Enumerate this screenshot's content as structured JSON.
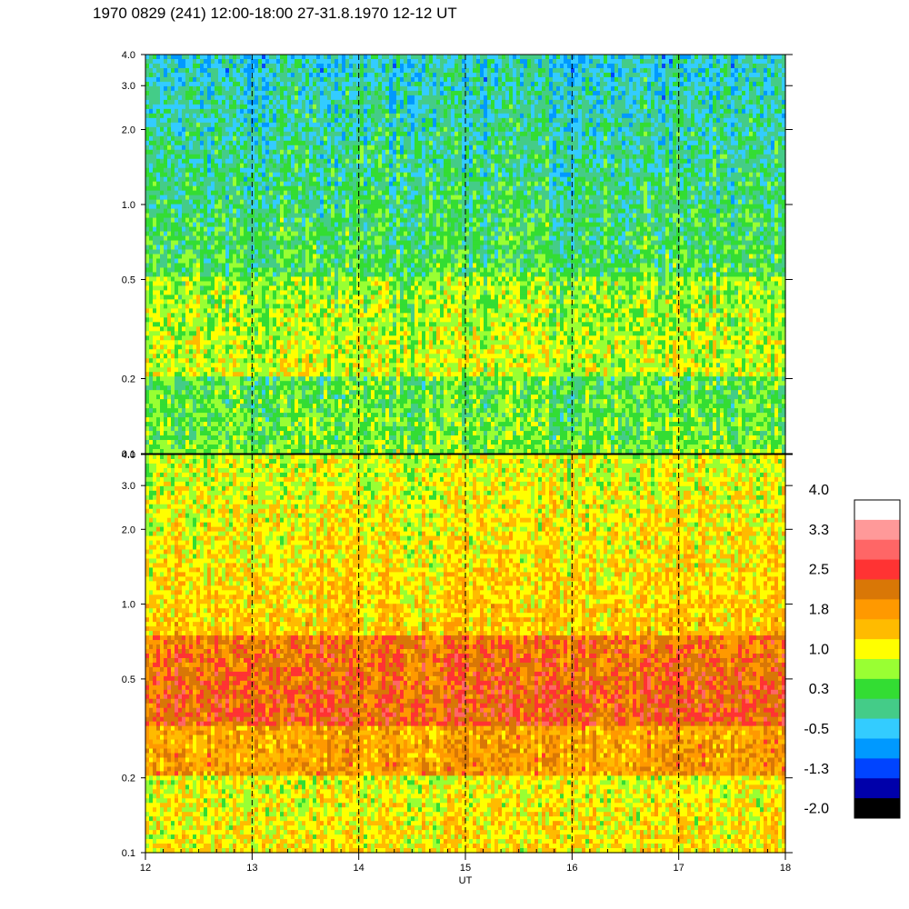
{
  "title": "1970 0829 (241) 12:00-18:00 27-31.8.1970  12-12 UT",
  "chart_data": [
    {
      "type": "heatmap",
      "panel": "top",
      "yscale": "log",
      "y_ticks": [
        "0.1",
        "0.2",
        "0.5",
        "1.0",
        "2.0",
        "3.0",
        "4.0"
      ],
      "y_tick_values": [
        0.1,
        0.2,
        0.5,
        1.0,
        2.0,
        3.0,
        4.0
      ],
      "ylim": [
        0.1,
        4.0
      ],
      "xlim": [
        12,
        18
      ],
      "x_ticks": [
        "12",
        "13",
        "14",
        "15",
        "16",
        "17",
        "18"
      ],
      "dominant_level_low_freq": 0.8,
      "dominant_level_high_freq": 0.0
    },
    {
      "type": "heatmap",
      "panel": "bottom",
      "yscale": "log",
      "y_ticks": [
        "0.1",
        "0.2",
        "0.5",
        "1.0",
        "2.0",
        "3.0",
        "4.0"
      ],
      "y_tick_values": [
        0.1,
        0.2,
        0.5,
        1.0,
        2.0,
        3.0,
        4.0
      ],
      "ylim": [
        0.1,
        4.0
      ],
      "xlim": [
        12,
        18
      ],
      "x_ticks": [
        "12",
        "13",
        "14",
        "15",
        "16",
        "17",
        "18"
      ],
      "xlabel": "UT",
      "dominant_level_mid_freq": 2.2,
      "dominant_level_high_freq": 1.2
    }
  ],
  "hour_marker_values": [
    13,
    14,
    15,
    16,
    17
  ],
  "colorbar": {
    "labels": [
      "4.0",
      "3.3",
      "2.5",
      "1.8",
      "1.0",
      "0.3",
      "-0.5",
      "-1.3",
      "-2.0"
    ],
    "colors": [
      "#ffffff",
      "#ff9999",
      "#ff6666",
      "#ff3333",
      "#d97706",
      "#ff9900",
      "#ffbb00",
      "#ffff00",
      "#99ff33",
      "#33dd33",
      "#44cc88",
      "#33ccff",
      "#0099ff",
      "#0044ff",
      "#0000aa",
      "#000000"
    ]
  }
}
